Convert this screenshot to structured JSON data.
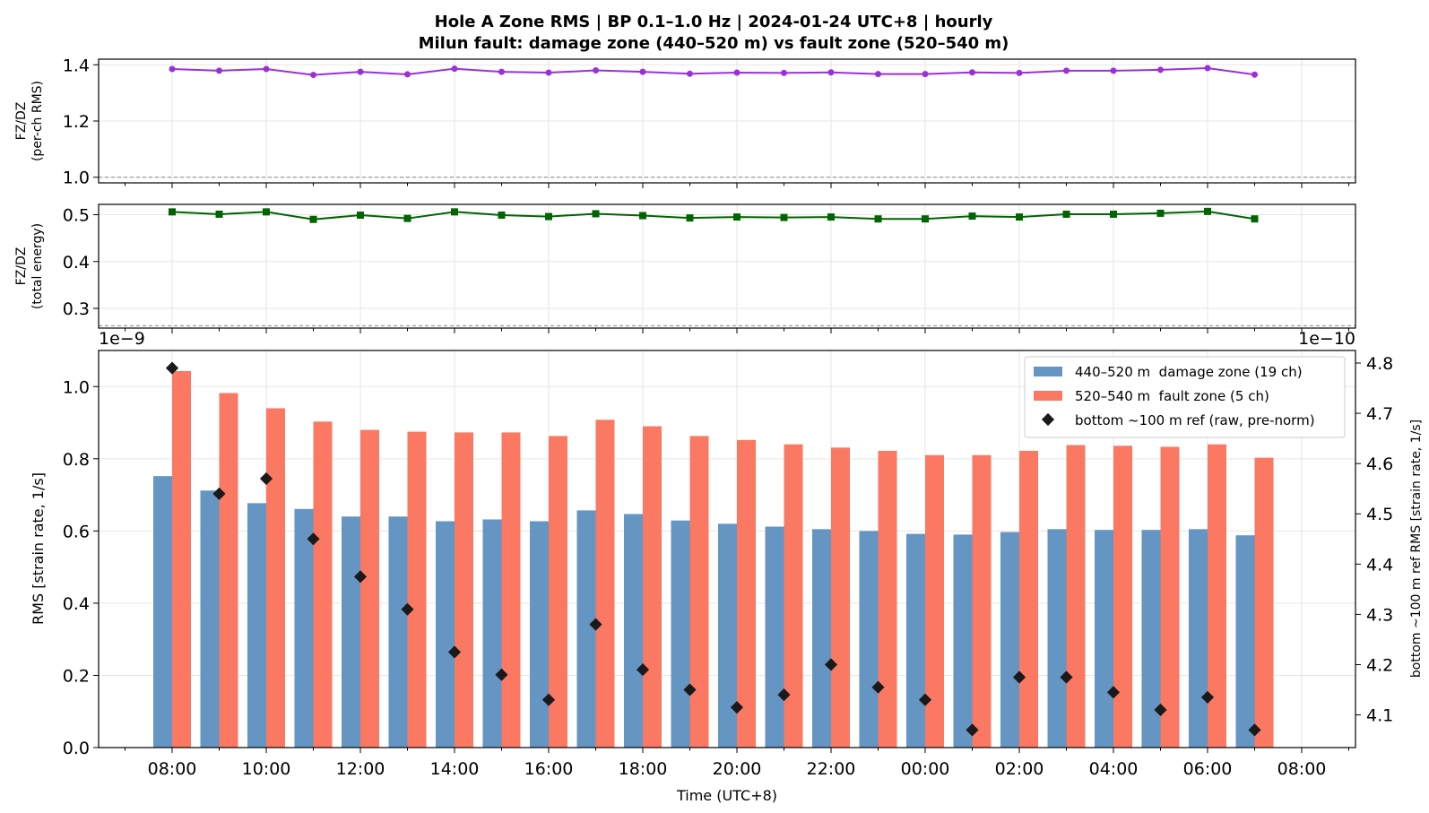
{
  "chart_data": {
    "title_line1": "Hole A Zone RMS  |  BP 0.1–1.0 Hz  |  2024-01-24 UTC+8  |  hourly",
    "title_line2": "Milun fault: damage zone (440–520 m) vs fault zone (520–540 m)",
    "xlabel": "Time (UTC+8)",
    "x_ticks": [
      "08:00",
      "10:00",
      "12:00",
      "14:00",
      "16:00",
      "18:00",
      "20:00",
      "22:00",
      "00:00",
      "02:00",
      "04:00",
      "06:00",
      "08:00"
    ],
    "hours": [
      "08:00",
      "09:00",
      "10:00",
      "11:00",
      "12:00",
      "13:00",
      "14:00",
      "15:00",
      "16:00",
      "17:00",
      "18:00",
      "19:00",
      "20:00",
      "21:00",
      "22:00",
      "23:00",
      "00:00",
      "01:00",
      "02:00",
      "03:00",
      "04:00",
      "05:00",
      "06:00",
      "07:00"
    ],
    "panels": [
      {
        "type": "line",
        "ylabel_line1": "FZ/DZ",
        "ylabel_line2": "(per-ch RMS)",
        "ylim": [
          0.98,
          1.42
        ],
        "yticks": [
          "1.0",
          "1.2",
          "1.4"
        ],
        "ytick_values": [
          1.0,
          1.2,
          1.4
        ],
        "ref_line": 1.0,
        "color": "#9b30d9",
        "marker": "circle",
        "values": [
          1.385,
          1.379,
          1.385,
          1.364,
          1.375,
          1.366,
          1.386,
          1.375,
          1.372,
          1.38,
          1.375,
          1.368,
          1.372,
          1.371,
          1.373,
          1.367,
          1.367,
          1.373,
          1.371,
          1.379,
          1.379,
          1.382,
          1.388,
          1.365
        ]
      },
      {
        "type": "line",
        "ylabel_line1": "FZ/DZ",
        "ylabel_line2": "(total energy)",
        "ylim": [
          0.258,
          0.522
        ],
        "yticks": [
          "0.3",
          "0.4",
          "0.5"
        ],
        "ytick_values": [
          0.3,
          0.4,
          0.5
        ],
        "ref_line": 0.263,
        "color": "#006400",
        "marker": "square",
        "values": [
          0.506,
          0.501,
          0.506,
          0.49,
          0.499,
          0.492,
          0.506,
          0.499,
          0.496,
          0.502,
          0.498,
          0.493,
          0.495,
          0.494,
          0.495,
          0.491,
          0.491,
          0.497,
          0.495,
          0.501,
          0.501,
          0.503,
          0.507,
          0.491
        ]
      },
      {
        "type": "bar",
        "ylabel": "RMS  [strain rate, 1/s]",
        "ylabel_right": "bottom ~100 m ref RMS  [strain rate, 1/s]",
        "offset_left": "1e−9",
        "offset_right": "1e−10",
        "ylim": [
          0,
          1.1
        ],
        "yticks": [
          "0.0",
          "0.2",
          "0.4",
          "0.6",
          "0.8",
          "1.0"
        ],
        "ytick_values": [
          0.0,
          0.2,
          0.4,
          0.6,
          0.8,
          1.0
        ],
        "ylim_right": [
          4.035,
          4.825
        ],
        "yticks_right": [
          "4.1",
          "4.2",
          "4.3",
          "4.4",
          "4.5",
          "4.6",
          "4.7",
          "4.8"
        ],
        "ytick_values_right": [
          4.1,
          4.2,
          4.3,
          4.4,
          4.5,
          4.6,
          4.7,
          4.8
        ],
        "series": [
          {
            "name": "440–520 m  damage zone (19 ch)",
            "color": "#6495c3",
            "values": [
              0.752,
              0.712,
              0.677,
              0.661,
              0.64,
              0.64,
              0.627,
              0.632,
              0.627,
              0.657,
              0.647,
              0.629,
              0.62,
              0.612,
              0.605,
              0.6,
              0.592,
              0.59,
              0.597,
              0.605,
              0.603,
              0.603,
              0.605,
              0.588
            ]
          },
          {
            "name": "520–540 m  fault zone (5 ch)",
            "color": "#fb7862",
            "values": [
              1.043,
              0.982,
              0.94,
              0.903,
              0.88,
              0.875,
              0.873,
              0.873,
              0.863,
              0.908,
              0.89,
              0.863,
              0.852,
              0.84,
              0.831,
              0.822,
              0.81,
              0.81,
              0.822,
              0.838,
              0.836,
              0.833,
              0.84,
              0.803
            ]
          },
          {
            "name": "bottom ~100 m ref (raw, pre-norm)",
            "color": "#1a1a1a",
            "marker": "diamond",
            "axis": "right",
            "values": [
              4.79,
              4.54,
              4.57,
              4.45,
              4.375,
              4.31,
              4.225,
              4.18,
              4.13,
              4.28,
              4.19,
              4.15,
              4.115,
              4.14,
              4.2,
              4.155,
              4.13,
              4.07,
              4.175,
              4.175,
              4.145,
              4.11,
              4.135,
              4.07
            ]
          }
        ]
      }
    ]
  }
}
